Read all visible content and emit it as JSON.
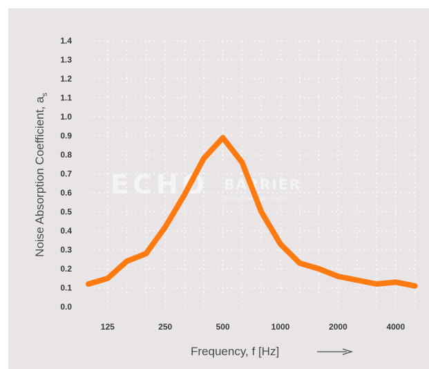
{
  "chart_data": {
    "type": "line",
    "title": "",
    "xlabel": "Frequency, f [Hz]",
    "ylabel": "Noise Absorption Coefficient, a",
    "ylabel_subscript": "s",
    "x_tick_labels": [
      "125",
      "250",
      "500",
      "1000",
      "2000",
      "4000"
    ],
    "x_tick_index": [
      1,
      4,
      7,
      10,
      13,
      16
    ],
    "y_tick_labels": [
      "0.0",
      "0.1",
      "0.2",
      "0.3",
      "0.4",
      "0.5",
      "0.6",
      "0.7",
      "0.8",
      "0.9",
      "1.0",
      "1.1",
      "1.2",
      "1.3",
      "1.4"
    ],
    "ylim": [
      0,
      1.4
    ],
    "grid": true,
    "series": [
      {
        "frequencies": [
          "100",
          "125",
          "160",
          "200",
          "250",
          "315",
          "400",
          "500",
          "630",
          "800",
          "1000",
          "1250",
          "1600",
          "2000",
          "2500",
          "3150",
          "4000",
          "5000"
        ],
        "values": [
          0.12,
          0.15,
          0.24,
          0.28,
          0.42,
          0.59,
          0.78,
          0.89,
          0.76,
          0.5,
          0.33,
          0.23,
          0.2,
          0.16,
          0.14,
          0.12,
          0.13,
          0.11
        ]
      }
    ],
    "line_color": "#ff7a10",
    "watermark": {
      "main": "ECHO",
      "secondary": "BARRIER",
      "tagline": "Environmentally Sound"
    }
  }
}
